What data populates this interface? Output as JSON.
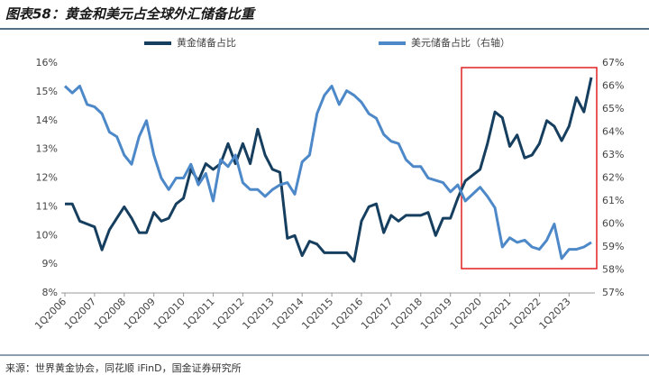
{
  "chart_data": {
    "type": "line",
    "title": "图表58：黄金和美元占全球外汇储备比重",
    "source": "来源：世界黄金协会，同花顺 iFinD，国金证券研究所",
    "categories": [
      "1Q2006",
      null,
      null,
      null,
      "1Q2007",
      null,
      null,
      null,
      "1Q2008",
      null,
      null,
      null,
      "1Q2009",
      null,
      null,
      null,
      "1Q2010",
      null,
      null,
      null,
      "1Q2011",
      null,
      null,
      null,
      "1Q2012",
      null,
      null,
      null,
      "1Q2013",
      null,
      null,
      null,
      "1Q2014",
      null,
      null,
      null,
      "1Q2015",
      null,
      null,
      null,
      "1Q2016",
      null,
      null,
      null,
      "1Q2017",
      null,
      null,
      null,
      "1Q2018",
      null,
      null,
      null,
      "1Q2019",
      null,
      null,
      null,
      "1Q2020",
      null,
      null,
      null,
      "1Q2021",
      null,
      null,
      null,
      "1Q2022",
      null,
      null,
      null,
      "1Q2023",
      null,
      null,
      null
    ],
    "series": [
      {
        "name": "黄金储备占比",
        "color": "#163e5f",
        "axis": "y",
        "values": [
          11.1,
          11.1,
          10.5,
          10.4,
          10.3,
          9.5,
          10.2,
          10.6,
          11.0,
          10.6,
          10.1,
          10.1,
          10.8,
          10.5,
          10.6,
          11.1,
          11.3,
          12.3,
          11.9,
          12.5,
          12.3,
          12.5,
          13.2,
          12.5,
          13.2,
          12.5,
          13.7,
          12.8,
          12.3,
          12.2,
          9.9,
          10.0,
          9.3,
          9.8,
          9.7,
          9.4,
          9.4,
          9.4,
          9.4,
          9.1,
          10.5,
          11.0,
          11.1,
          10.1,
          10.7,
          10.5,
          10.7,
          10.7,
          10.7,
          10.8,
          10.0,
          10.6,
          10.6,
          11.3,
          11.9,
          12.1,
          12.3,
          13.2,
          14.3,
          14.1,
          13.1,
          13.5,
          12.7,
          12.8,
          13.2,
          14.0,
          13.8,
          13.3,
          13.8,
          14.8,
          14.3,
          15.5
        ]
      },
      {
        "name": "美元储备占比（右轴）",
        "color": "#4d88c9",
        "axis": "y2",
        "values": [
          66.0,
          65.7,
          66.0,
          65.2,
          65.1,
          64.8,
          64.0,
          63.8,
          63.0,
          62.6,
          63.8,
          64.5,
          63.0,
          62.0,
          61.5,
          62.0,
          62.0,
          62.6,
          61.7,
          62.2,
          61.0,
          62.8,
          62.5,
          63.0,
          61.8,
          61.5,
          61.5,
          61.2,
          61.5,
          61.7,
          61.8,
          61.3,
          62.7,
          63.0,
          64.8,
          65.6,
          66.0,
          65.2,
          65.8,
          65.6,
          65.3,
          64.8,
          64.6,
          63.9,
          63.6,
          63.5,
          62.8,
          62.5,
          62.5,
          62.0,
          61.9,
          61.8,
          61.4,
          61.7,
          61.0,
          61.3,
          61.6,
          61.2,
          60.7,
          59.0,
          59.4,
          59.2,
          59.3,
          59.0,
          58.9,
          59.3,
          60.0,
          58.5,
          58.9,
          58.9,
          59.0,
          59.2
        ]
      }
    ],
    "ylim": [
      8,
      16
    ],
    "yticks": [
      {
        "value": 8,
        "label": "8%"
      },
      {
        "value": 9,
        "label": "9%"
      },
      {
        "value": 10,
        "label": "10%"
      },
      {
        "value": 11,
        "label": "11%"
      },
      {
        "value": 12,
        "label": "12%"
      },
      {
        "value": 13,
        "label": "13%"
      },
      {
        "value": 14,
        "label": "14%"
      },
      {
        "value": 15,
        "label": "15%"
      },
      {
        "value": 16,
        "label": "16%"
      }
    ],
    "y2lim": [
      57,
      67
    ],
    "y2ticks": [
      {
        "value": 57,
        "label": "57%"
      },
      {
        "value": 58,
        "label": "58%"
      },
      {
        "value": 59,
        "label": "59%"
      },
      {
        "value": 60,
        "label": "60%"
      },
      {
        "value": 61,
        "label": "61%"
      },
      {
        "value": 62,
        "label": "62%"
      },
      {
        "value": 63,
        "label": "63%"
      },
      {
        "value": 64,
        "label": "64%"
      },
      {
        "value": 65,
        "label": "65%"
      },
      {
        "value": 66,
        "label": "66%"
      },
      {
        "value": 67,
        "label": "67%"
      }
    ],
    "grid": false,
    "legend": "top"
  }
}
